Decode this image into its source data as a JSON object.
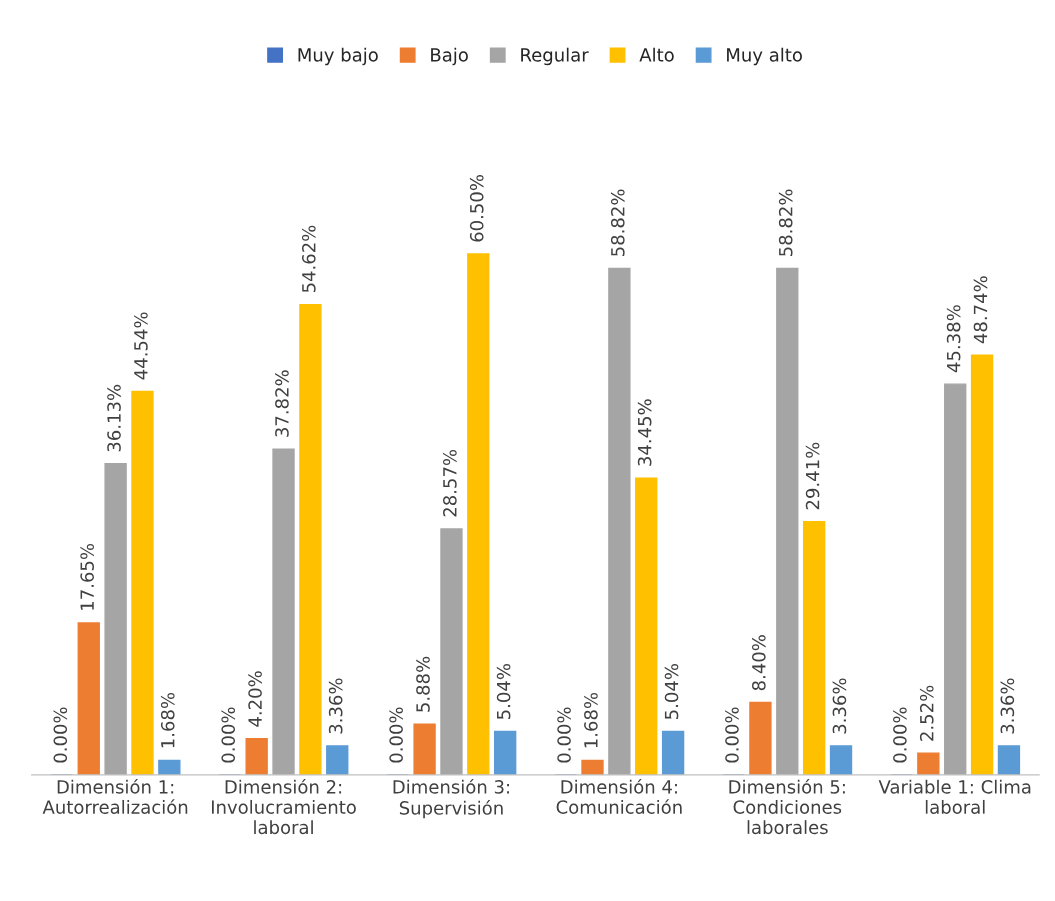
{
  "chart_data": {
    "type": "bar",
    "categories": [
      "Dimensión 1:\nAutorrealización",
      "Dimensión 2:\nInvolucramiento\nlaboral",
      "Dimensión 3:\nSupervisión",
      "Dimensión 4:\nComunicación",
      "Dimensión 5:\nCondiciones\nlaborales",
      "Variable 1: Clima\nlaboral"
    ],
    "series": [
      {
        "name": "Muy bajo",
        "color": "#4472c4",
        "values": [
          0,
          0,
          0,
          0,
          0,
          0
        ],
        "value_labels": [
          "0.00%",
          "0.00%",
          "0.00%",
          "0.00%",
          "0.00%",
          "0.00%"
        ]
      },
      {
        "name": "Bajo",
        "color": "#ed7d31",
        "values": [
          17.65,
          4.2,
          5.88,
          1.68,
          8.4,
          2.52
        ],
        "value_labels": [
          "17.65%",
          "4.20%",
          "5.88%",
          "1.68%",
          "8.40%",
          "2.52%"
        ]
      },
      {
        "name": "Regular",
        "color": "#a5a5a5",
        "values": [
          36.13,
          37.82,
          28.57,
          58.82,
          58.82,
          45.38
        ],
        "value_labels": [
          "36.13%",
          "37.82%",
          "28.57%",
          "58.82%",
          "58.82%",
          "45.38%"
        ]
      },
      {
        "name": "Alto",
        "color": "#ffc000",
        "values": [
          44.54,
          54.62,
          60.5,
          34.45,
          29.41,
          48.74
        ],
        "value_labels": [
          "44.54%",
          "54.62%",
          "60.50%",
          "34.45%",
          "29.41%",
          "48.74%"
        ]
      },
      {
        "name": "Muy alto",
        "color": "#5b9bd5",
        "values": [
          1.68,
          3.36,
          5.04,
          5.04,
          3.36,
          3.36
        ],
        "value_labels": [
          "1.68%",
          "3.36%",
          "5.04%",
          "5.04%",
          "3.36%",
          "3.36%"
        ]
      }
    ],
    "legend": "top",
    "grid": false,
    "tick_labels": "x"
  }
}
